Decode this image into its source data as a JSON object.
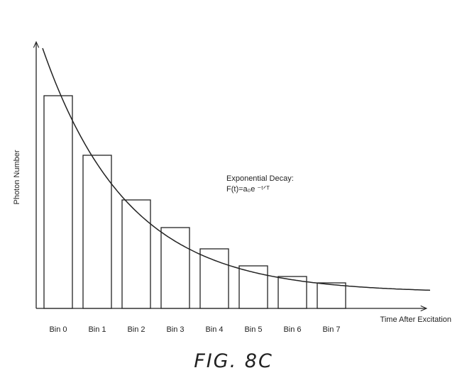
{
  "figure_caption": "FIG. 8C",
  "chart_data": {
    "type": "bar",
    "title": "",
    "xlabel": "Time After Excitation",
    "ylabel": "Photon Number",
    "categories": [
      "Bin 0",
      "Bin 1",
      "Bin 2",
      "Bin 3",
      "Bin 4",
      "Bin 5",
      "Bin 6",
      "Bin 7"
    ],
    "values": [
      100,
      72,
      51,
      38,
      28,
      20,
      15,
      12
    ],
    "ylim": [
      0,
      125
    ],
    "grid": false,
    "legend": "none",
    "overlay_curve": {
      "type": "exponential_decay",
      "annotation_line1": "Exponential Decay:",
      "annotation_line2": "F(t)=a₀e ⁻ᵗᐟᵀ"
    },
    "colors": {
      "bar_fill": "#ffffff",
      "bar_stroke": "#222222",
      "curve": "#222222"
    }
  }
}
